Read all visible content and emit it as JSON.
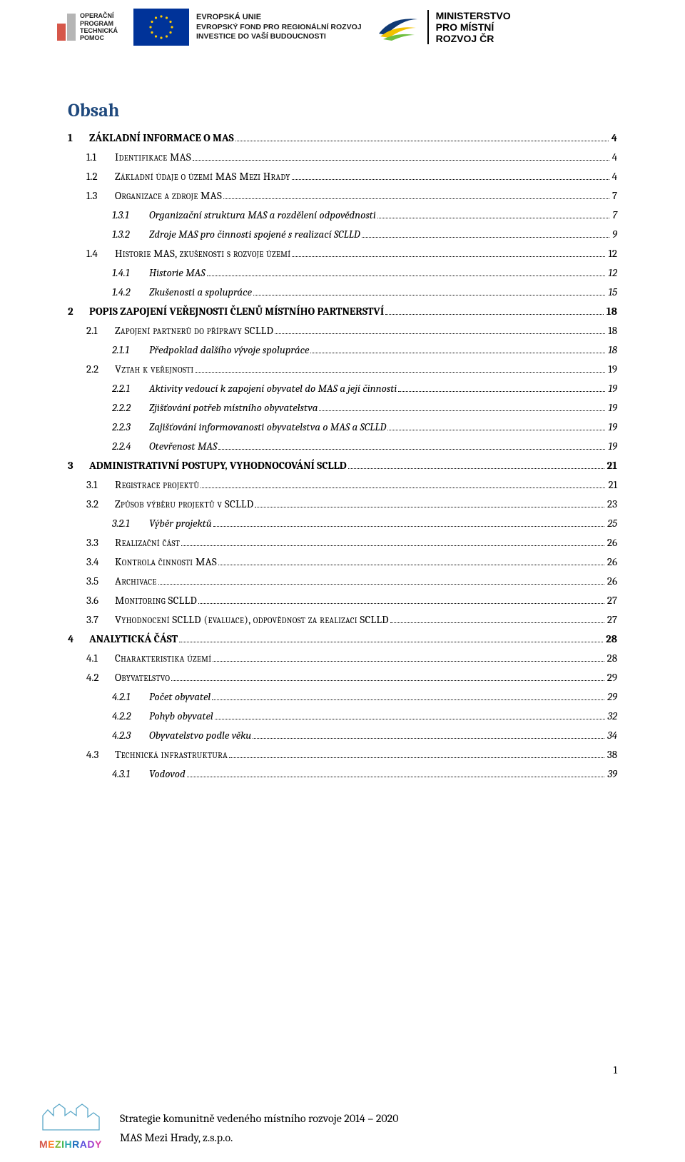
{
  "logos": {
    "optp": {
      "l1": "OPERAČNÍ",
      "l2": "PROGRAM",
      "l3": "TECHNICKÁ",
      "l4": "POMOC",
      "bar1_color": "#d6574a",
      "bar2_color": "#b5b5b5"
    },
    "eu": {
      "l1": "EVROPSKÁ UNIE",
      "l2": "EVROPSKÝ FOND PRO REGIONÁLNÍ ROZVOJ",
      "l3": "INVESTICE DO VAŠÍ BUDOUCNOSTI",
      "flag_bg": "#003399",
      "star_color": "#ffcc00"
    },
    "mmr": {
      "l1": "MINISTERSTVO",
      "l2": "PRO MÍSTNÍ",
      "l3": "ROZVOJ ČR"
    }
  },
  "title": "Obsah",
  "title_color": "#1f497d",
  "title_fontsize": 26,
  "toc_fontsize": 15,
  "toc": [
    {
      "lv": 1,
      "num": "1",
      "label": "ZÁKLADNÍ INFORMACE O MAS",
      "page": "4"
    },
    {
      "lv": 2,
      "num": "1.1",
      "label": "Identifikace MAS",
      "page": "4"
    },
    {
      "lv": 2,
      "num": "1.2",
      "label": "Základní údaje o území MAS Mezi Hrady",
      "page": "4"
    },
    {
      "lv": 2,
      "num": "1.3",
      "label": "Organizace a zdroje MAS",
      "page": "7"
    },
    {
      "lv": 3,
      "num": "1.3.1",
      "label": "Organizační struktura MAS a rozdělení odpovědnosti",
      "page": "7"
    },
    {
      "lv": 3,
      "num": "1.3.2",
      "label": "Zdroje MAS pro činnosti spojené s realizací SCLLD",
      "page": "9"
    },
    {
      "lv": 2,
      "num": "1.4",
      "label": "Historie MAS, zkušenosti s rozvoje území",
      "page": "12"
    },
    {
      "lv": 3,
      "num": "1.4.1",
      "label": "Historie MAS",
      "page": "12"
    },
    {
      "lv": 3,
      "num": "1.4.2",
      "label": "Zkušenosti a spolupráce",
      "page": "15"
    },
    {
      "lv": 1,
      "num": "2",
      "label": "POPIS ZAPOJENÍ VEŘEJNOSTI ČLENŮ MÍSTNÍHO PARTNERSTVÍ",
      "page": "18"
    },
    {
      "lv": 2,
      "num": "2.1",
      "label": "Zapojení partnerů do přípravy SCLLD",
      "page": "18"
    },
    {
      "lv": 3,
      "num": "2.1.1",
      "label": "Předpoklad dalšího vývoje spolupráce",
      "page": "18"
    },
    {
      "lv": 2,
      "num": "2.2",
      "label": "Vztah k veřejnosti",
      "page": "19"
    },
    {
      "lv": 3,
      "num": "2.2.1",
      "label": "Aktivity vedoucí k zapojení obyvatel do MAS a její činnosti",
      "page": "19"
    },
    {
      "lv": 3,
      "num": "2.2.2",
      "label": "Zjišťování potřeb místního obyvatelstva",
      "page": "19"
    },
    {
      "lv": 3,
      "num": "2.2.3",
      "label": "Zajišťování informovanosti obyvatelstva o MAS a SCLLD",
      "page": "19"
    },
    {
      "lv": 3,
      "num": "2.2.4",
      "label": "Otevřenost MAS",
      "page": "19"
    },
    {
      "lv": 1,
      "num": "3",
      "label": "ADMINISTRATIVNÍ POSTUPY, VYHODNOCOVÁNÍ SCLLD",
      "page": "21"
    },
    {
      "lv": 2,
      "num": "3.1",
      "label": "Registrace projektů",
      "page": "21"
    },
    {
      "lv": 2,
      "num": "3.2",
      "label": "Způsob výběru projektů v SCLLD",
      "page": "23"
    },
    {
      "lv": 3,
      "num": "3.2.1",
      "label": "Výběr projektů",
      "page": "25"
    },
    {
      "lv": 2,
      "num": "3.3",
      "label": "Realizační část",
      "page": "26"
    },
    {
      "lv": 2,
      "num": "3.4",
      "label": "Kontrola činnosti MAS",
      "page": "26"
    },
    {
      "lv": 2,
      "num": "3.5",
      "label": "Archivace",
      "page": "26"
    },
    {
      "lv": 2,
      "num": "3.6",
      "label": "Monitoring SCLLD",
      "page": "27"
    },
    {
      "lv": 2,
      "num": "3.7",
      "label": "Vyhodnocení SCLLD (evaluace), odpovědnost za realizaci SCLLD",
      "page": "27"
    },
    {
      "lv": 1,
      "num": "4",
      "label": "ANALYTICKÁ ČÁST",
      "page": "28"
    },
    {
      "lv": 2,
      "num": "4.1",
      "label": "Charakteristika území",
      "page": "28"
    },
    {
      "lv": 2,
      "num": "4.2",
      "label": "Obyvatelstvo",
      "page": "29"
    },
    {
      "lv": 3,
      "num": "4.2.1",
      "label": "Počet obyvatel",
      "page": "29"
    },
    {
      "lv": 3,
      "num": "4.2.2",
      "label": "Pohyb obyvatel",
      "page": "32"
    },
    {
      "lv": 3,
      "num": "4.2.3",
      "label": "Obyvatelstvo podle věku",
      "page": "34"
    },
    {
      "lv": 2,
      "num": "4.3",
      "label": "Technická infrastruktura",
      "page": "38"
    },
    {
      "lv": 3,
      "num": "4.3.1",
      "label": "Vodovod",
      "page": "39"
    }
  ],
  "page_number": "1",
  "footer": {
    "line1": "Strategie komunitně vedeného místního rozvoje 2014 – 2020",
    "line2": "MAS Mezi Hrady, z.s.p.o.",
    "brand": "MEZIHRADY",
    "brand_colors": [
      "#d6574a",
      "#ff7f27",
      "#7fb52e",
      "#3cb44b",
      "#2aa7af",
      "#1f6fbf",
      "#5a4edb",
      "#9a3fd1",
      "#d63fa8"
    ]
  }
}
